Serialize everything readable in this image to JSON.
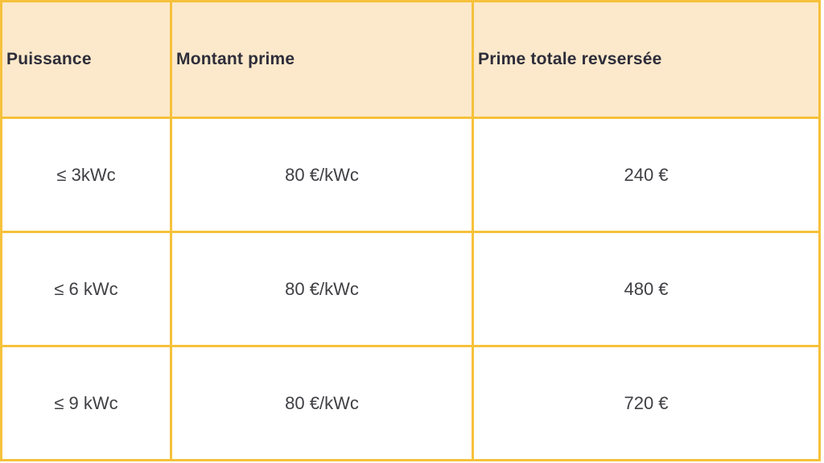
{
  "chart_data": {
    "type": "table",
    "title": "",
    "columns": [
      "Puissance",
      "Montant prime",
      "Prime totale revsersée"
    ],
    "rows": [
      [
        "≤ 3kWc",
        "80 €/kWc",
        "240 €"
      ],
      [
        "≤ 6 kWc",
        "80 €/kWc",
        "480 €"
      ],
      [
        "≤ 9 kWc",
        "80 €/kWc",
        "720 €"
      ]
    ]
  },
  "colors": {
    "border": "#f6c13b",
    "header_bg": "#fce9cb",
    "header_text": "#2e2d3a",
    "cell_text": "#3f3f44",
    "page_bg": "#ffffff"
  }
}
